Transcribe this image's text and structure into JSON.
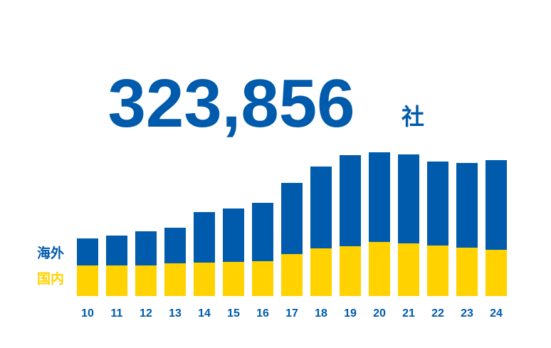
{
  "chart_data": {
    "type": "stacked-bar",
    "title": "323,856",
    "unit": "社",
    "categories": [
      "10",
      "11",
      "12",
      "13",
      "14",
      "15",
      "16",
      "17",
      "18",
      "19",
      "20",
      "21",
      "22",
      "23",
      "24"
    ],
    "series": [
      {
        "name": "国内",
        "color": "#ffd200",
        "values": [
          72900,
          72900,
          72900,
          78000,
          79700,
          81400,
          83100,
          100000,
          113600,
          118700,
          128900,
          125500,
          120400,
          115300,
          110200
        ]
      },
      {
        "name": "海外",
        "color": "#005bac",
        "values": [
          64400,
          71200,
          81400,
          84800,
          120400,
          127200,
          139000,
          169600,
          195000,
          217000,
          213600,
          212000,
          200100,
          201800,
          213656
        ]
      }
    ]
  }
}
